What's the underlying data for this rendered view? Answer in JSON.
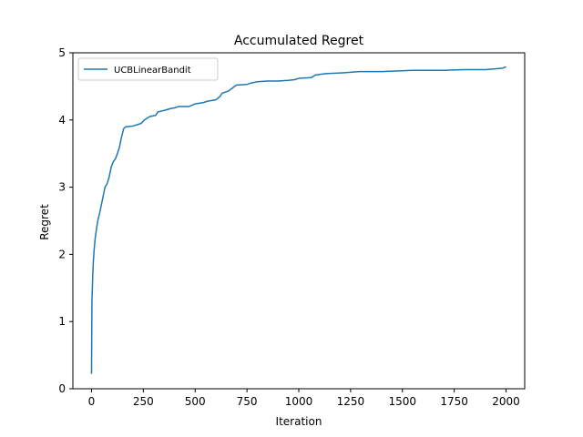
{
  "chart_data": {
    "type": "line",
    "title": "Accumulated Regret",
    "xlabel": "Iteration",
    "ylabel": "Regret",
    "xlim": [
      -90,
      2090
    ],
    "ylim": [
      0,
      5
    ],
    "xticks": [
      0,
      250,
      500,
      750,
      1000,
      1250,
      1500,
      1750,
      2000
    ],
    "yticks": [
      0,
      1,
      2,
      3,
      4,
      5
    ],
    "grid": false,
    "legend_position": "top-left",
    "series": [
      {
        "name": "UCBLinearBandit",
        "color": "#1f77b4",
        "x": [
          0,
          2,
          5,
          8,
          12,
          18,
          25,
          30,
          38,
          45,
          55,
          65,
          75,
          85,
          95,
          105,
          115,
          125,
          135,
          145,
          155,
          165,
          175,
          200,
          240,
          255,
          280,
          310,
          320,
          360,
          380,
          400,
          420,
          470,
          500,
          540,
          560,
          600,
          620,
          630,
          660,
          690,
          700,
          750,
          770,
          800,
          850,
          900,
          950,
          980,
          1000,
          1060,
          1080,
          1130,
          1200,
          1250,
          1290,
          1350,
          1400,
          1480,
          1550,
          1600,
          1700,
          1800,
          1900,
          1980,
          1990,
          2000
        ],
        "y": [
          0.22,
          1.3,
          1.6,
          1.85,
          2.05,
          2.25,
          2.4,
          2.5,
          2.6,
          2.7,
          2.85,
          3.0,
          3.05,
          3.15,
          3.3,
          3.38,
          3.42,
          3.5,
          3.6,
          3.75,
          3.87,
          3.9,
          3.9,
          3.91,
          3.95,
          4.0,
          4.05,
          4.07,
          4.12,
          4.15,
          4.17,
          4.18,
          4.2,
          4.2,
          4.24,
          4.26,
          4.28,
          4.3,
          4.35,
          4.4,
          4.43,
          4.5,
          4.52,
          4.53,
          4.55,
          4.57,
          4.58,
          4.58,
          4.59,
          4.6,
          4.62,
          4.63,
          4.67,
          4.69,
          4.7,
          4.71,
          4.72,
          4.72,
          4.72,
          4.73,
          4.74,
          4.74,
          4.74,
          4.75,
          4.75,
          4.77,
          4.78,
          4.79
        ]
      }
    ]
  }
}
